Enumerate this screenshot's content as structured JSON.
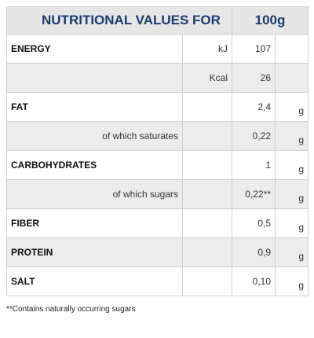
{
  "header": {
    "title": "NUTRITIONAL VALUES FOR",
    "amount": "100g"
  },
  "nutrients": [
    {
      "name": "ENERGY",
      "amounts": [
        {
          "unit": "kJ",
          "value": "107"
        },
        {
          "unit": "Kcal",
          "value": "26"
        }
      ]
    },
    {
      "name": "FAT",
      "value": "2,4",
      "unit": "g",
      "sub": {
        "name": "of which saturates",
        "value": "0,22",
        "unit": "g"
      }
    },
    {
      "name": "CARBOHYDRATES",
      "value": "1",
      "unit": "g",
      "sub": {
        "name": "of which sugars",
        "value": "0,22**",
        "unit": "g"
      }
    },
    {
      "name": "FIBER",
      "value": "0,5",
      "unit": "g"
    },
    {
      "name": "PROTEIN",
      "value": "0,9",
      "unit": "g"
    },
    {
      "name": "SALT",
      "value": "0,10",
      "unit": "g"
    }
  ],
  "footnote": "**Contains naturally occurring sugars"
}
